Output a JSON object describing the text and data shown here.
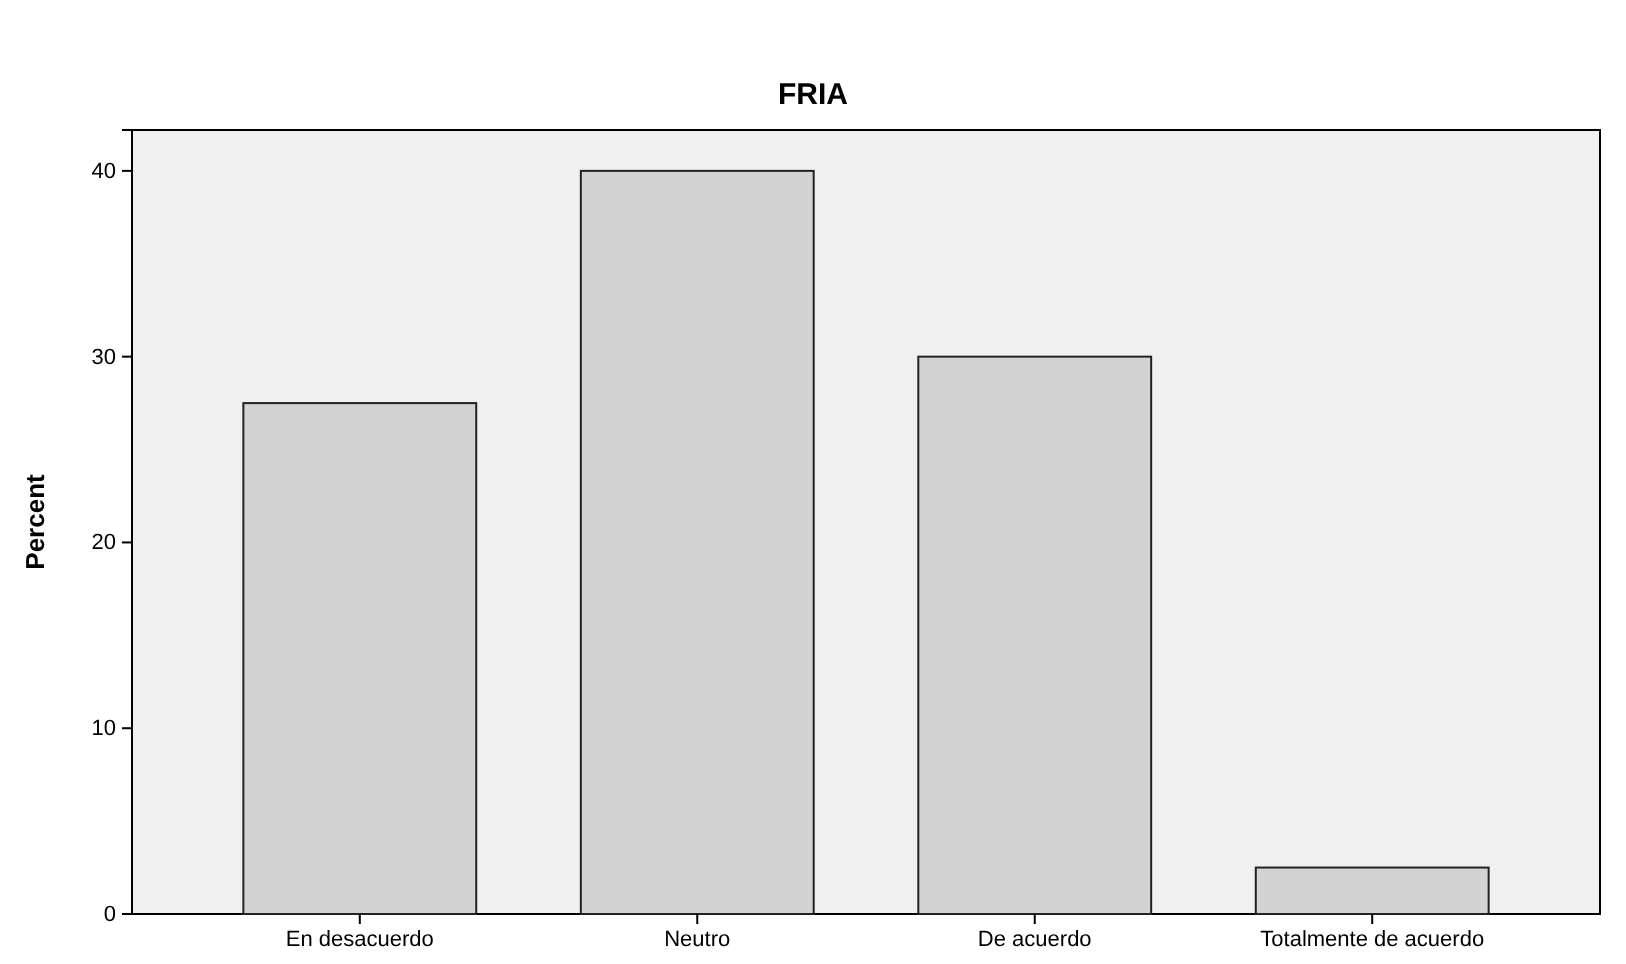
{
  "chart_data": {
    "type": "bar",
    "title": "FRIA",
    "ylabel": "Percent",
    "categories": [
      "En desacuerdo",
      "Neutro",
      "De acuerdo",
      "Totalmente de acuerdo"
    ],
    "values": [
      27.5,
      40,
      30,
      2.5
    ],
    "color": "#d3d3d3",
    "ylim": [
      0,
      42.2
    ],
    "yticks": [
      0,
      10,
      20,
      30,
      40
    ],
    "grid": false
  }
}
